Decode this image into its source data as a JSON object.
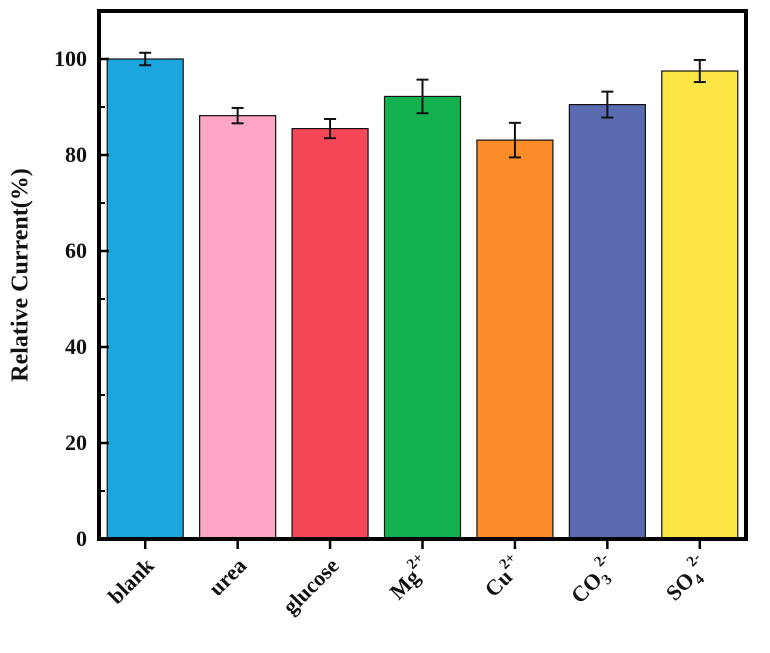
{
  "chart_data": {
    "type": "bar",
    "title": "",
    "xlabel": "",
    "ylabel": "Relative Current(%)",
    "ylim": [
      0,
      110
    ],
    "yticks": [
      0,
      20,
      40,
      60,
      80,
      100
    ],
    "grid": false,
    "categories": [
      {
        "base": "blank",
        "sub": "",
        "sup": ""
      },
      {
        "base": "urea",
        "sub": "",
        "sup": ""
      },
      {
        "base": "glucose",
        "sub": "",
        "sup": ""
      },
      {
        "base": "Mg",
        "sub": "",
        "sup": "2+"
      },
      {
        "base": "Cu",
        "sub": "",
        "sup": "2+"
      },
      {
        "base": "CO",
        "sub": "3",
        "sup": "2-"
      },
      {
        "base": "SO",
        "sub": "4",
        "sup": "2-"
      }
    ],
    "values": [
      100,
      88.2,
      85.5,
      92.2,
      83.1,
      90.5,
      97.5
    ],
    "errors": [
      1.3,
      1.6,
      2.0,
      3.5,
      3.6,
      2.7,
      2.3
    ],
    "colors": [
      "#1ba6e0",
      "#fca6c6",
      "#f64759",
      "#12b04f",
      "#fb8c29",
      "#5a6bb2",
      "#fde546"
    ]
  }
}
